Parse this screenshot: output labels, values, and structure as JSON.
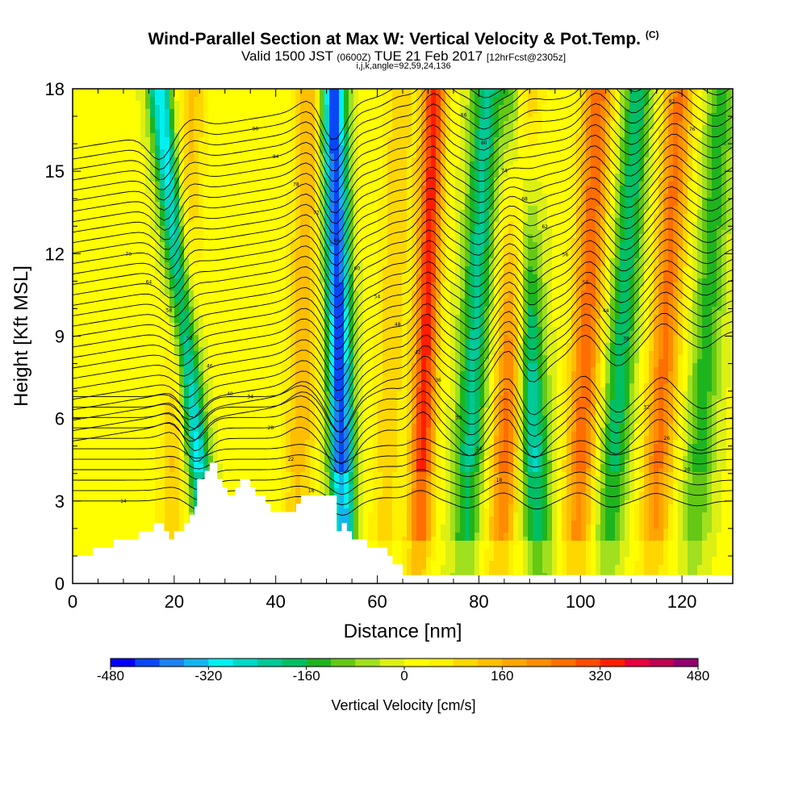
{
  "header": {
    "title": "Wind-Parallel Section at Max W: Vertical Velocity & Pot.Temp.",
    "copyright": "(C)",
    "subtitle_prefix": "Valid 1500 JST",
    "subtitle_zulu": "(0600Z)",
    "subtitle_date": "TUE 21 Feb 2017",
    "subtitle_fcst": "[12hrFcst@2305z]",
    "indices": "i,j,k,angle=92,59,24,136"
  },
  "chart_data": {
    "type": "heatmap",
    "title": "Wind-Parallel Section at Max W: Vertical Velocity & Pot.Temp.",
    "xlabel": "Distance [nm]",
    "ylabel": "Height [Kft MSL]",
    "xlim": [
      0,
      130
    ],
    "ylim": [
      0,
      18
    ],
    "xticks": [
      0,
      20,
      40,
      60,
      80,
      100,
      120
    ],
    "yticks": [
      0,
      3,
      6,
      9,
      12,
      15,
      18
    ],
    "colorbar": {
      "label": "Vertical Velocity [cm/s]",
      "min": -480,
      "max": 480,
      "step": 40,
      "ticks": [
        -480,
        -320,
        -160,
        0,
        160,
        320,
        480
      ],
      "tick_labels": [
        "-480",
        "-320",
        "-160",
        "0",
        "160",
        "320",
        "480"
      ],
      "colors": [
        "#0000ff",
        "#0a46f5",
        "#1e82f0",
        "#14b4f0",
        "#00f0f0",
        "#00d7c8",
        "#00c896",
        "#00be64",
        "#1eb41e",
        "#64c814",
        "#a0e01e",
        "#dcf014",
        "#ffff00",
        "#fff000",
        "#ffd700",
        "#ffbe00",
        "#ffa500",
        "#ff8c00",
        "#ff6e00",
        "#ff4b00",
        "#ff1e00",
        "#e6003c",
        "#be0050",
        "#91006e",
        "#6e0082",
        "#50008c"
      ]
    },
    "wave_bands_nm": [
      {
        "x_base": 19,
        "tilt_nm_per_kft": 0.25,
        "w_cms": 120
      },
      {
        "x_base": 27,
        "tilt_nm_per_kft": -0.55,
        "w_cms": -320
      },
      {
        "x_base": 44,
        "tilt_nm_per_kft": 0.15,
        "w_cms": 140
      },
      {
        "x_base": 53.5,
        "tilt_nm_per_kft": -0.12,
        "w_cms": -450
      },
      {
        "x_base": 61,
        "tilt_nm_per_kft": 0.2,
        "w_cms": 100
      },
      {
        "x_base": 68,
        "tilt_nm_per_kft": 0.18,
        "w_cms": 330
      },
      {
        "x_base": 77,
        "tilt_nm_per_kft": 0.25,
        "w_cms": -220
      },
      {
        "x_base": 84,
        "tilt_nm_per_kft": 0.28,
        "w_cms": 260
      },
      {
        "x_base": 92,
        "tilt_nm_per_kft": -0.25,
        "w_cms": -260
      },
      {
        "x_base": 99,
        "tilt_nm_per_kft": 0.25,
        "w_cms": 260
      },
      {
        "x_base": 105,
        "tilt_nm_per_kft": 0.35,
        "w_cms": -200
      },
      {
        "x_base": 114,
        "tilt_nm_per_kft": 0.3,
        "w_cms": 240
      },
      {
        "x_base": 122,
        "tilt_nm_per_kft": 0.32,
        "w_cms": -150
      }
    ],
    "terrain_kft": [
      [
        0,
        1.0
      ],
      [
        4,
        1.0
      ],
      [
        4,
        1.3
      ],
      [
        8,
        1.3
      ],
      [
        8,
        1.6
      ],
      [
        13,
        1.6
      ],
      [
        13,
        1.9
      ],
      [
        16,
        1.9
      ],
      [
        16,
        2.2
      ],
      [
        18,
        2.2
      ],
      [
        18,
        1.9
      ],
      [
        19,
        1.9
      ],
      [
        19,
        1.6
      ],
      [
        20,
        1.6
      ],
      [
        20,
        1.9
      ],
      [
        22,
        1.9
      ],
      [
        22,
        2.2
      ],
      [
        23,
        2.2
      ],
      [
        23,
        2.5
      ],
      [
        24,
        2.5
      ],
      [
        24,
        2.8
      ],
      [
        24.5,
        2.8
      ],
      [
        24.5,
        3.8
      ],
      [
        26,
        3.8
      ],
      [
        26,
        4.1
      ],
      [
        27,
        4.1
      ],
      [
        27,
        4.4
      ],
      [
        28.5,
        4.4
      ],
      [
        28.5,
        3.8
      ],
      [
        29.5,
        3.8
      ],
      [
        29.5,
        3.5
      ],
      [
        30.5,
        3.5
      ],
      [
        30.5,
        3.2
      ],
      [
        32,
        3.2
      ],
      [
        32,
        3.5
      ],
      [
        33,
        3.5
      ],
      [
        33,
        3.8
      ],
      [
        35,
        3.8
      ],
      [
        35,
        3.5
      ],
      [
        36,
        3.5
      ],
      [
        36,
        3.2
      ],
      [
        38,
        3.2
      ],
      [
        38,
        2.9
      ],
      [
        39,
        2.9
      ],
      [
        39,
        2.6
      ],
      [
        44,
        2.6
      ],
      [
        44,
        2.9
      ],
      [
        45,
        2.9
      ],
      [
        45,
        3.2
      ],
      [
        52,
        3.2
      ],
      [
        52,
        1.9
      ],
      [
        53,
        1.9
      ],
      [
        53,
        2.2
      ],
      [
        54,
        2.2
      ],
      [
        54,
        1.9
      ],
      [
        55,
        1.9
      ],
      [
        55,
        1.6
      ],
      [
        58,
        1.6
      ],
      [
        58,
        1.3
      ],
      [
        62,
        1.3
      ],
      [
        62,
        1.0
      ],
      [
        63,
        1.0
      ],
      [
        63,
        0.7
      ],
      [
        65,
        0.7
      ],
      [
        65,
        0.3
      ],
      [
        130,
        0.3
      ]
    ],
    "theta_contour_labels": [
      "14",
      "16",
      "18",
      "20",
      "22",
      "24",
      "26",
      "28",
      "30",
      "32",
      "34",
      "36",
      "38",
      "40",
      "42",
      "44",
      "46",
      "48",
      "50",
      "52",
      "54",
      "56",
      "58",
      "60",
      "62",
      "64",
      "66",
      "68",
      "70",
      "72",
      "74",
      "76",
      "78",
      "80",
      "82",
      "84",
      "86",
      "88",
      "90",
      "92",
      "94",
      "96",
      "98"
    ]
  }
}
